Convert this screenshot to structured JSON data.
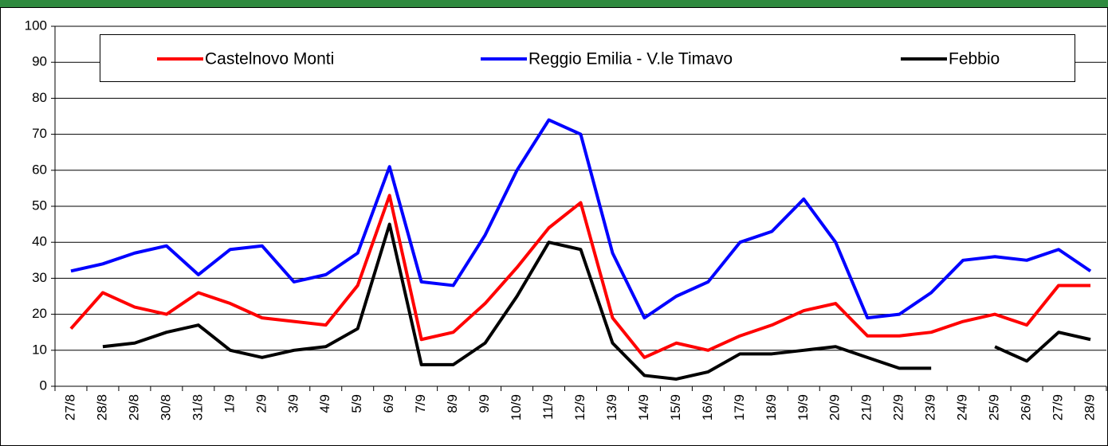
{
  "chart_data": {
    "type": "line",
    "categories": [
      "27/8",
      "28/8",
      "29/8",
      "30/8",
      "31/8",
      "1/9",
      "2/9",
      "3/9",
      "4/9",
      "5/9",
      "6/9",
      "7/9",
      "8/9",
      "9/9",
      "10/9",
      "11/9",
      "12/9",
      "13/9",
      "14/9",
      "15/9",
      "16/9",
      "17/9",
      "18/9",
      "19/9",
      "20/9",
      "21/9",
      "22/9",
      "23/9",
      "24/9",
      "25/9",
      "26/9",
      "27/9",
      "28/9"
    ],
    "series": [
      {
        "name": "Castelnovo Monti",
        "color": "#ff0000",
        "values": [
          16,
          26,
          22,
          20,
          26,
          23,
          19,
          18,
          17,
          28,
          53,
          13,
          15,
          23,
          33,
          44,
          51,
          19,
          8,
          12,
          10,
          14,
          17,
          21,
          23,
          14,
          14,
          15,
          18,
          20,
          17,
          28,
          28
        ]
      },
      {
        "name": "Reggio Emilia - V.le Timavo",
        "color": "#0000ff",
        "values": [
          32,
          34,
          37,
          39,
          31,
          38,
          39,
          29,
          31,
          37,
          61,
          29,
          28,
          42,
          60,
          74,
          70,
          37,
          19,
          25,
          29,
          40,
          43,
          52,
          40,
          19,
          20,
          26,
          35,
          36,
          35,
          38,
          32
        ]
      },
      {
        "name": "Febbio",
        "color": "#000000",
        "values": [
          null,
          11,
          12,
          15,
          17,
          10,
          8,
          10,
          11,
          16,
          45,
          6,
          6,
          12,
          25,
          40,
          38,
          12,
          3,
          2,
          4,
          9,
          9,
          10,
          11,
          8,
          5,
          5,
          null,
          11,
          7,
          15,
          13
        ]
      }
    ],
    "ylim": [
      0,
      100
    ],
    "yticks": [
      0,
      10,
      20,
      30,
      40,
      50,
      60,
      70,
      80,
      90,
      100
    ],
    "grid": true,
    "legend": "top"
  }
}
